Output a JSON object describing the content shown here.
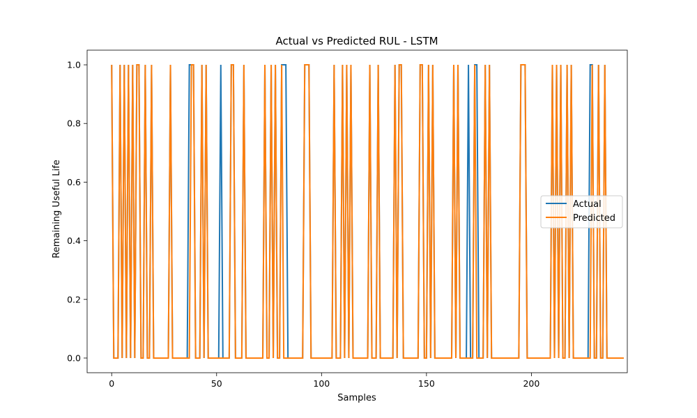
{
  "chart_data": {
    "type": "line",
    "title": "Actual vs Predicted RUL - LSTM",
    "xlabel": "Samples",
    "ylabel": "Remaining Useful Life",
    "xlim": [
      -11.7,
      245.7
    ],
    "ylim": [
      -0.05,
      1.05
    ],
    "xticks": [
      0,
      50,
      100,
      150,
      200
    ],
    "yticks": [
      0.0,
      0.2,
      0.4,
      0.6,
      0.8,
      1.0
    ],
    "xtick_labels": [
      "0",
      "50",
      "100",
      "150",
      "200"
    ],
    "ytick_labels": [
      "0.0",
      "0.2",
      "0.4",
      "0.6",
      "0.8",
      "1.0"
    ],
    "grid": false,
    "legend_position": "center-right",
    "series": [
      {
        "name": "Actual",
        "color": "#1f77b4",
        "values": [
          1,
          0,
          0,
          0,
          1,
          0,
          1,
          0,
          1,
          0,
          1,
          0,
          1,
          1,
          0,
          0,
          1,
          0,
          0,
          1,
          0,
          0,
          0,
          0,
          0,
          0,
          0,
          0,
          1,
          0,
          0,
          0,
          0,
          0,
          0,
          0,
          0,
          1,
          1,
          1,
          0,
          0,
          0,
          1,
          0,
          1,
          0,
          0,
          0,
          0,
          0,
          0,
          1,
          0,
          0,
          0,
          0,
          1,
          1,
          0,
          0,
          0,
          0,
          1,
          0,
          0,
          0,
          0,
          0,
          0,
          0,
          0,
          0,
          1,
          0,
          0,
          1,
          0,
          1,
          0,
          0,
          1,
          1,
          1,
          0,
          0,
          0,
          0,
          0,
          0,
          0,
          0,
          1,
          1,
          1,
          0,
          0,
          0,
          0,
          0,
          0,
          0,
          0,
          0,
          0,
          0,
          1,
          0,
          0,
          0,
          1,
          0,
          1,
          0,
          1,
          0,
          0,
          0,
          0,
          0,
          0,
          0,
          0,
          1,
          0,
          0,
          0,
          1,
          0,
          0,
          0,
          0,
          0,
          0,
          0,
          1,
          0,
          1,
          1,
          0,
          0,
          0,
          0,
          0,
          0,
          0,
          0,
          1,
          1,
          0,
          0,
          1,
          0,
          1,
          0,
          0,
          0,
          0,
          0,
          0,
          0,
          0,
          0,
          1,
          0,
          1,
          0,
          0,
          0,
          0,
          1,
          0,
          0,
          1,
          1,
          0,
          0,
          0,
          1,
          0,
          1,
          0,
          0,
          0,
          0,
          0,
          0,
          0,
          0,
          0,
          0,
          0,
          0,
          0,
          0,
          1,
          1,
          1,
          0,
          0,
          0,
          0,
          0,
          0,
          0,
          0,
          0,
          0,
          0,
          0,
          1,
          0,
          1,
          0,
          1,
          0,
          0,
          1,
          0,
          1,
          0,
          0,
          0,
          0,
          0,
          0,
          0,
          0,
          1,
          1,
          0,
          0,
          1,
          0,
          0,
          1,
          0,
          0,
          0,
          0,
          0,
          0,
          0,
          0,
          0
        ]
      },
      {
        "name": "Predicted",
        "color": "#ff7f0e",
        "values": [
          1,
          0,
          0,
          0,
          1,
          0,
          1,
          0,
          1,
          0,
          1,
          0,
          1,
          1,
          0,
          0,
          1,
          0,
          0,
          1,
          0,
          0,
          0,
          0,
          0,
          0,
          0,
          0,
          1,
          0,
          0,
          0,
          0,
          0,
          0,
          0,
          0,
          0,
          1,
          1,
          0,
          0,
          0,
          1,
          0,
          1,
          0,
          0,
          0,
          0,
          0,
          0,
          0,
          0,
          0,
          0,
          0,
          1,
          1,
          0,
          0,
          0,
          0,
          1,
          0,
          0,
          0,
          0,
          0,
          0,
          0,
          0,
          0,
          1,
          0,
          0,
          1,
          0,
          1,
          0,
          0,
          1,
          0,
          0,
          0,
          0,
          0,
          0,
          0,
          0,
          0,
          0,
          1,
          1,
          1,
          0,
          0,
          0,
          0,
          0,
          0,
          0,
          0,
          0,
          0,
          0,
          1,
          0,
          0,
          0,
          1,
          0,
          1,
          0,
          1,
          0,
          0,
          0,
          0,
          0,
          0,
          0,
          0,
          1,
          0,
          0,
          0,
          1,
          0,
          0,
          0,
          0,
          0,
          0,
          0,
          1,
          0,
          1,
          1,
          0,
          0,
          0,
          0,
          0,
          0,
          0,
          0,
          1,
          1,
          0,
          0,
          1,
          0,
          1,
          0,
          0,
          0,
          0,
          0,
          0,
          0,
          0,
          0,
          1,
          0,
          1,
          0,
          0,
          0,
          0,
          0,
          0,
          0,
          1,
          0,
          0,
          0,
          0,
          1,
          0,
          1,
          0,
          0,
          0,
          0,
          0,
          0,
          0,
          0,
          0,
          0,
          0,
          0,
          0,
          0,
          1,
          1,
          1,
          0,
          0,
          0,
          0,
          0,
          0,
          0,
          0,
          0,
          0,
          0,
          0,
          1,
          0,
          1,
          0,
          1,
          0,
          0,
          1,
          0,
          1,
          0,
          0,
          0,
          0,
          0,
          0,
          0,
          0,
          0,
          1,
          0,
          0,
          1,
          0,
          0,
          1,
          0,
          0,
          0,
          0,
          0,
          0,
          0,
          0,
          0
        ]
      }
    ]
  }
}
